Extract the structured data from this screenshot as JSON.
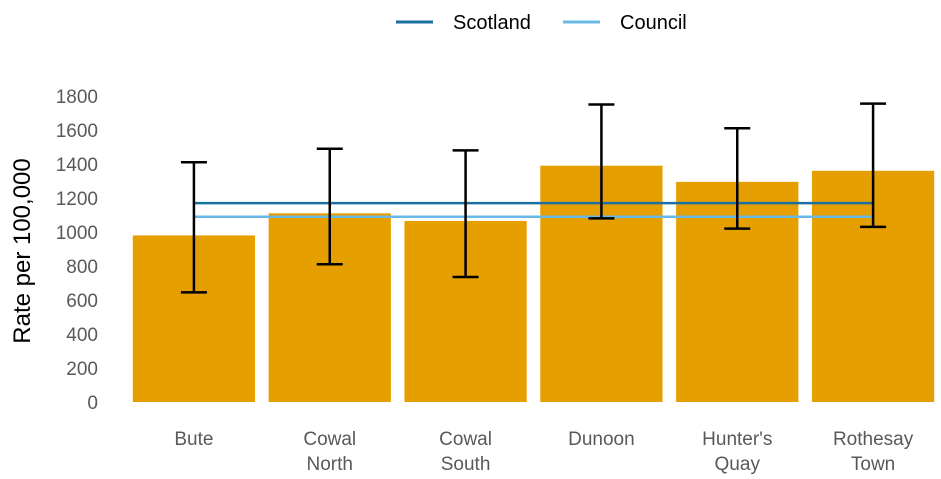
{
  "chart_data": {
    "type": "bar",
    "categories": [
      [
        "Bute"
      ],
      [
        "Cowal",
        "North"
      ],
      [
        "Cowal",
        "South"
      ],
      [
        "Dunoon"
      ],
      [
        "Hunter's",
        "Quay"
      ],
      [
        "Rothesay",
        "Town"
      ]
    ],
    "values": [
      980,
      1110,
      1065,
      1390,
      1295,
      1360
    ],
    "error_low": [
      645,
      810,
      735,
      1080,
      1020,
      1030
    ],
    "error_high": [
      1410,
      1490,
      1480,
      1750,
      1610,
      1755
    ],
    "reference_lines": [
      {
        "name": "Scotland",
        "value": 1170,
        "color": "#1a6fa3"
      },
      {
        "name": "Council",
        "value": 1090,
        "color": "#69b8e6"
      }
    ],
    "bar_color": "#e69f00",
    "error_color": "#000000",
    "ylabel": "Rate per 100,000",
    "xlabel": "",
    "ylim": [
      0,
      1800
    ],
    "yticks": [
      "0",
      "200",
      "400",
      "600",
      "800",
      "1000",
      "1200",
      "1400",
      "1600",
      "1800"
    ],
    "legend_position": "top-center",
    "grid": false
  }
}
